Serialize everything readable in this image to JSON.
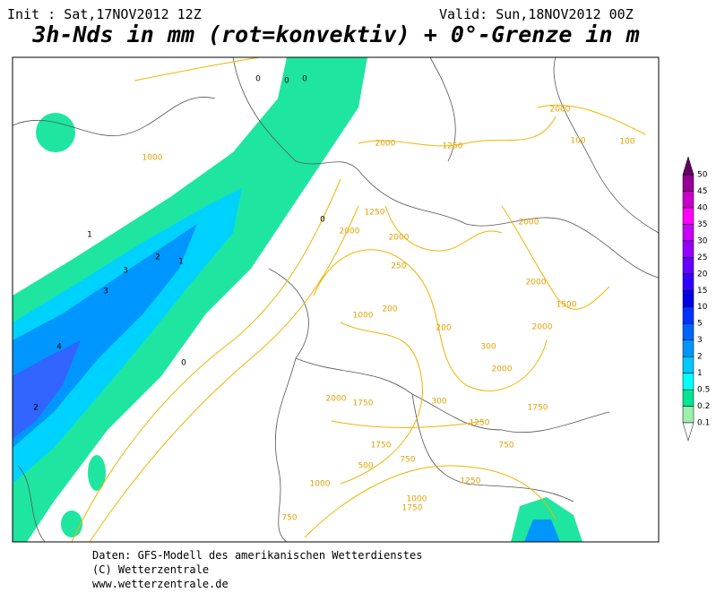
{
  "header": {
    "init": "Init : Sat,17NOV2012 12Z",
    "valid": "Valid: Sun,18NOV2012 00Z",
    "title": "3h-Nds in mm (rot=konvektiv) + 0°-Grenze in m"
  },
  "legend": {
    "labels": [
      "0.1",
      "0.2",
      "0.5",
      "1",
      "2",
      "3",
      "5",
      "10",
      "15",
      "20",
      "25",
      "30",
      "35",
      "40",
      "45",
      "50"
    ],
    "colors": [
      "#9bf0aa",
      "#00e696",
      "#00ffff",
      "#00c8ff",
      "#0096ff",
      "#0064ff",
      "#0032ff",
      "#0000e6",
      "#3200ff",
      "#6400ff",
      "#9600ff",
      "#c800ff",
      "#ff00ff",
      "#c800c8",
      "#960096"
    ],
    "top_color": "#640064",
    "bottom_color": "#ffffff"
  },
  "map_labels": [
    "1000",
    "0",
    "0",
    "0",
    "2000",
    "1250",
    "2000",
    "100",
    "100",
    "1250",
    "2000",
    "2000",
    "2000",
    "250",
    "2000",
    "200",
    "1000",
    "1500",
    "2000",
    "200",
    "300",
    "2000",
    "300",
    "1750",
    "2000",
    "1750",
    "1250",
    "750",
    "1750",
    "750",
    "500",
    "1000",
    "1250",
    "1750",
    "750",
    "1000",
    "1",
    "2",
    "3",
    "3",
    "4",
    "2",
    "1",
    "0",
    "0"
  ],
  "footer": {
    "lines": [
      "Daten: GFS-Modell des amerikanischen Wetterdienstes",
      "(C) Wetterzentrale",
      "www.wetterzentrale.de"
    ]
  }
}
